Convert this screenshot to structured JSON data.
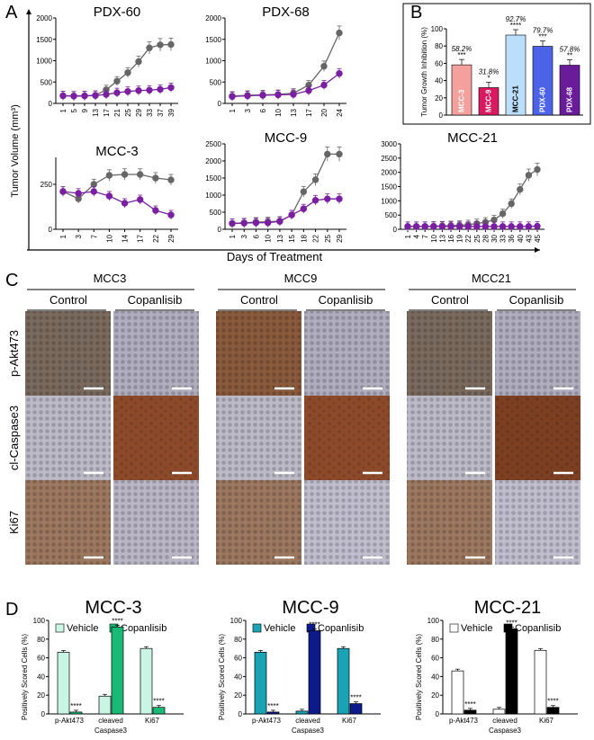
{
  "panels": {
    "A": "A",
    "B": "B",
    "C": "C",
    "D": "D"
  },
  "colors": {
    "control": "#666666",
    "treated": "#7b1fa2"
  },
  "panelA": {
    "ylabel": "Tumor Volume (mm³)",
    "xlabel": "Days of Treatment",
    "charts": [
      {
        "title": "PDX-60",
        "x": [
          "1",
          "5",
          "9",
          "13",
          "17",
          "21",
          "25",
          "29",
          "33",
          "37",
          "39"
        ],
        "ylim": [
          0,
          2000
        ],
        "yticks": [
          "0",
          "500",
          "1000",
          "1500",
          "2000"
        ],
        "control": [
          180,
          175,
          180,
          190,
          320,
          520,
          720,
          980,
          1300,
          1370,
          1380
        ],
        "treated": [
          180,
          170,
          175,
          185,
          210,
          250,
          280,
          300,
          310,
          330,
          370
        ]
      },
      {
        "title": "PDX-68",
        "x": [
          "1",
          "3",
          "6",
          "10",
          "13",
          "17",
          "20",
          "24"
        ],
        "ylim": [
          0,
          2000
        ],
        "yticks": [
          "0",
          "500",
          "1000",
          "1500",
          "2000"
        ],
        "control": [
          170,
          190,
          200,
          210,
          240,
          430,
          870,
          1650
        ],
        "treated": [
          160,
          180,
          190,
          200,
          210,
          300,
          430,
          700
        ]
      },
      {
        "title": "MCC-3",
        "x": [
          "1",
          "3",
          "7",
          "10",
          "14",
          "17",
          "22",
          "29"
        ],
        "ylim": [
          0,
          400
        ],
        "yticks": [
          "0",
          "250"
        ],
        "control": [
          210,
          170,
          250,
          300,
          305,
          305,
          285,
          275
        ],
        "treated": [
          210,
          200,
          210,
          185,
          145,
          165,
          105,
          80
        ]
      },
      {
        "title": "MCC-9",
        "x": [
          "1",
          "3",
          "6",
          "10",
          "13",
          "15",
          "18",
          "22",
          "25",
          "29"
        ],
        "ylim": [
          0,
          2500
        ],
        "yticks": [
          "0",
          "500",
          "1000",
          "1500",
          "2000",
          "2500"
        ],
        "control": [
          170,
          190,
          210,
          220,
          240,
          420,
          1100,
          1450,
          2200,
          2200
        ],
        "treated": [
          170,
          180,
          190,
          190,
          230,
          420,
          600,
          850,
          890,
          890
        ]
      },
      {
        "title": "MCC-21",
        "x": [
          "1",
          "4",
          "7",
          "10",
          "13",
          "16",
          "19",
          "22",
          "25",
          "28",
          "30",
          "33",
          "36",
          "40",
          "43",
          "45"
        ],
        "ylim": [
          0,
          3000
        ],
        "yticks": [
          "0",
          "500",
          "1000",
          "1500",
          "2000",
          "2500",
          "3000"
        ],
        "control": [
          100,
          100,
          100,
          110,
          120,
          130,
          140,
          160,
          200,
          250,
          330,
          550,
          900,
          1400,
          1900,
          2100
        ],
        "treated": [
          100,
          100,
          100,
          100,
          100,
          100,
          100,
          100,
          100,
          100,
          100,
          100,
          100,
          100,
          100,
          110
        ]
      }
    ]
  },
  "panelB": {
    "ylabel": "Tumor Growth Inhibition (%)",
    "ylim": [
      0,
      100
    ],
    "yticks": [
      "0",
      "20",
      "40",
      "60",
      "80",
      "100"
    ],
    "bars": [
      {
        "name": "MCC-3",
        "value": 58.2,
        "pct": "58.2%",
        "sig": "***",
        "color": "#f4a09c"
      },
      {
        "name": "MCC-9",
        "value": 31.8,
        "pct": "31.8%",
        "sig": "*",
        "color": "#d81b60"
      },
      {
        "name": "MCC-21",
        "value": 92.7,
        "pct": "92.7%",
        "sig": "****",
        "color": "#bbdefb"
      },
      {
        "name": "PDX-60",
        "value": 79.7,
        "pct": "79.7%",
        "sig": "***",
        "color": "#4c63e8"
      },
      {
        "name": "PDX-68",
        "value": 57.8,
        "pct": "57.8%",
        "sig": "**",
        "color": "#6a1b9a"
      }
    ]
  },
  "panelC": {
    "groups": [
      "MCC3",
      "MCC9",
      "MCC21"
    ],
    "conditions": [
      "Control",
      "Copanlisib"
    ],
    "rows": [
      "p-Akt473",
      "cl-Caspase3",
      "Ki67"
    ]
  },
  "panelD": {
    "ylabel": "Positively Scored Cells (%)",
    "ylim": [
      0,
      100
    ],
    "yticks": [
      "0",
      "20",
      "40",
      "60",
      "80",
      "100"
    ],
    "categories": [
      "p-Akt473",
      "cleaved Caspase3",
      "Ki67"
    ],
    "cat_lines": [
      "p-Akt473",
      "cleaved",
      "Ki67"
    ],
    "cat_sub": "Caspase3",
    "charts": [
      {
        "title": "MCC-3",
        "vehicle_color": "#c8f5e4",
        "treated_color": "#19b976",
        "legend": [
          "Vehicle",
          "Copanlisib"
        ],
        "vehicle": [
          66,
          19,
          70
        ],
        "treated": [
          2,
          93,
          7
        ],
        "sig": [
          "****",
          "****",
          "****"
        ]
      },
      {
        "title": "MCC-9",
        "vehicle_color": "#1aa2b5",
        "treated_color": "#0d1a8c",
        "legend": [
          "Vehicle",
          "Copanlisib"
        ],
        "vehicle": [
          66,
          3,
          70
        ],
        "treated": [
          2,
          89,
          11
        ],
        "sig": [
          "****",
          "****",
          "****"
        ]
      },
      {
        "title": "MCC-21",
        "vehicle_color": "#ffffff",
        "treated_color": "#000000",
        "legend": [
          "Vehicle",
          "Copanlisib"
        ],
        "vehicle": [
          46,
          5,
          68
        ],
        "treated": [
          4,
          91,
          7
        ],
        "sig": [
          "****",
          "****",
          "****"
        ]
      }
    ]
  },
  "chart_data": [
    {
      "type": "line",
      "title": "PDX-60",
      "x": [
        "1",
        "5",
        "9",
        "13",
        "17",
        "21",
        "25",
        "29",
        "33",
        "37",
        "39"
      ],
      "series": [
        {
          "name": "control",
          "values": [
            180,
            175,
            180,
            190,
            320,
            520,
            720,
            980,
            1300,
            1370,
            1380
          ]
        },
        {
          "name": "copanlisib",
          "values": [
            180,
            170,
            175,
            185,
            210,
            250,
            280,
            300,
            310,
            330,
            370
          ]
        }
      ],
      "ylim": [
        0,
        2000
      ]
    },
    {
      "type": "line",
      "title": "PDX-68",
      "x": [
        "1",
        "3",
        "6",
        "10",
        "13",
        "17",
        "20",
        "24"
      ],
      "series": [
        {
          "name": "control",
          "values": [
            170,
            190,
            200,
            210,
            240,
            430,
            870,
            1650
          ]
        },
        {
          "name": "copanlisib",
          "values": [
            160,
            180,
            190,
            200,
            210,
            300,
            430,
            700
          ]
        }
      ],
      "ylim": [
        0,
        2000
      ]
    },
    {
      "type": "line",
      "title": "MCC-3",
      "x": [
        "1",
        "3",
        "7",
        "10",
        "14",
        "17",
        "22",
        "29"
      ],
      "series": [
        {
          "name": "control",
          "values": [
            210,
            170,
            250,
            300,
            305,
            305,
            285,
            275
          ]
        },
        {
          "name": "copanlisib",
          "values": [
            210,
            200,
            210,
            185,
            145,
            165,
            105,
            80
          ]
        }
      ],
      "ylim": [
        0,
        400
      ]
    },
    {
      "type": "line",
      "title": "MCC-9",
      "x": [
        "1",
        "3",
        "6",
        "10",
        "13",
        "15",
        "18",
        "22",
        "25",
        "29"
      ],
      "series": [
        {
          "name": "control",
          "values": [
            170,
            190,
            210,
            220,
            240,
            420,
            1100,
            1450,
            2200,
            2200
          ]
        },
        {
          "name": "copanlisib",
          "values": [
            170,
            180,
            190,
            190,
            230,
            420,
            600,
            850,
            890,
            890
          ]
        }
      ],
      "ylim": [
        0,
        2500
      ]
    },
    {
      "type": "line",
      "title": "MCC-21",
      "x": [
        "1",
        "4",
        "7",
        "10",
        "13",
        "16",
        "19",
        "22",
        "25",
        "28",
        "30",
        "33",
        "36",
        "40",
        "43",
        "45"
      ],
      "series": [
        {
          "name": "control",
          "values": [
            100,
            100,
            100,
            110,
            120,
            130,
            140,
            160,
            200,
            250,
            330,
            550,
            900,
            1400,
            1900,
            2100
          ]
        },
        {
          "name": "copanlisib",
          "values": [
            100,
            100,
            100,
            100,
            100,
            100,
            100,
            100,
            100,
            100,
            100,
            100,
            100,
            100,
            100,
            110
          ]
        }
      ],
      "ylim": [
        0,
        3000
      ]
    },
    {
      "type": "bar",
      "title": "Tumor Growth Inhibition",
      "categories": [
        "MCC-3",
        "MCC-9",
        "MCC-21",
        "PDX-60",
        "PDX-68"
      ],
      "values": [
        58.2,
        31.8,
        92.7,
        79.7,
        57.8
      ],
      "ylabel": "Tumor Growth Inhibition (%)",
      "ylim": [
        0,
        100
      ]
    },
    {
      "type": "bar",
      "title": "MCC-3",
      "categories": [
        "p-Akt473",
        "cleaved Caspase3",
        "Ki67"
      ],
      "series": [
        {
          "name": "Vehicle",
          "values": [
            66,
            19,
            70
          ]
        },
        {
          "name": "Copanlisib",
          "values": [
            2,
            93,
            7
          ]
        }
      ],
      "ylabel": "Positively Scored Cells (%)",
      "ylim": [
        0,
        100
      ]
    },
    {
      "type": "bar",
      "title": "MCC-9",
      "categories": [
        "p-Akt473",
        "cleaved Caspase3",
        "Ki67"
      ],
      "series": [
        {
          "name": "Vehicle",
          "values": [
            66,
            3,
            70
          ]
        },
        {
          "name": "Copanlisib",
          "values": [
            2,
            89,
            11
          ]
        }
      ],
      "ylabel": "Positively Scored Cells (%)",
      "ylim": [
        0,
        100
      ]
    },
    {
      "type": "bar",
      "title": "MCC-21",
      "categories": [
        "p-Akt473",
        "cleaved Caspase3",
        "Ki67"
      ],
      "series": [
        {
          "name": "Vehicle",
          "values": [
            46,
            5,
            68
          ]
        },
        {
          "name": "Copanlisib",
          "values": [
            4,
            91,
            7
          ]
        }
      ],
      "ylabel": "Positively Scored Cells (%)",
      "ylim": [
        0,
        100
      ]
    }
  ]
}
